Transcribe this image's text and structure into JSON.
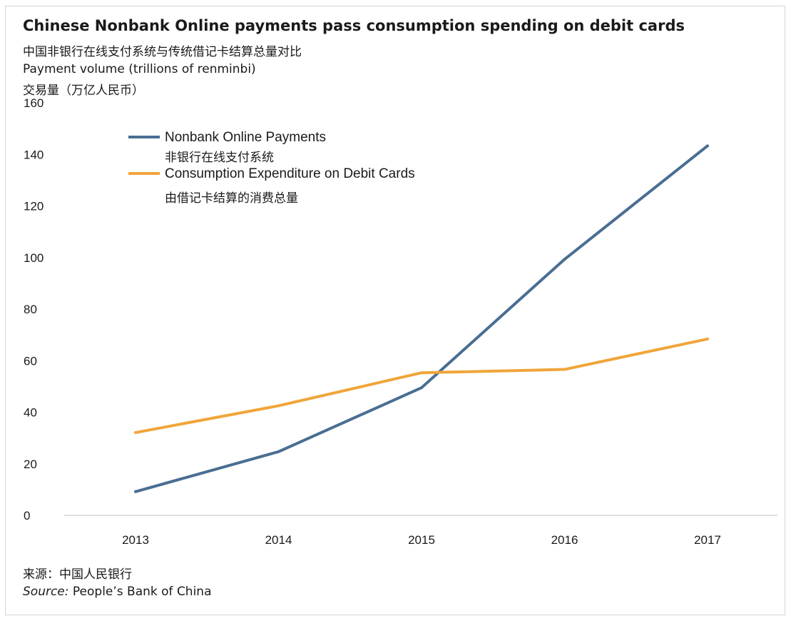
{
  "header": {
    "title": "Chinese Nonbank Online payments pass consumption spending on debit cards",
    "subtitle_cn": "中国非银行在线支付系统与传统借记卡结算总量对比",
    "ylabel_en": "Payment volume (trillions of renminbi)",
    "ylabel_cn": "交易量（万亿人民币）"
  },
  "footer": {
    "source_cn": "来源：中国人民银行",
    "source_prefix": "Source:",
    "source_text": " People’s Bank of China"
  },
  "chart_data": {
    "type": "line",
    "categories": [
      "2013",
      "2014",
      "2015",
      "2016",
      "2017"
    ],
    "ylim": [
      0,
      160
    ],
    "yticks": [
      "0",
      "20",
      "40",
      "60",
      "80",
      "100",
      "120",
      "140",
      "160"
    ],
    "grid": false,
    "legend_position": "top-left",
    "series": [
      {
        "name": "Nonbank Online Payments",
        "name_cn": "非银行在线支付系统",
        "color": "#4a6e92",
        "values": [
          9.2,
          24.7,
          49.5,
          99.3,
          143.3
        ]
      },
      {
        "name": "Consumption Expenditure on Debit Cards",
        "name_cn": "由借记卡结算的消费总量",
        "color": "#f0a53a",
        "values": [
          32.1,
          42.5,
          55.3,
          56.6,
          68.4
        ]
      }
    ]
  }
}
